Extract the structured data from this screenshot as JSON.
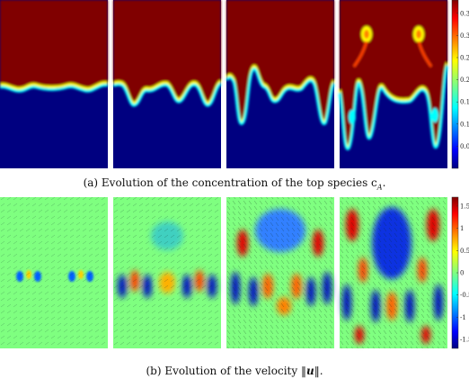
{
  "captions": {
    "a": "(a) Evolution of the concentration of the top species c",
    "a_sub": "A",
    "a_end": ".",
    "b_pre": "(b) Evolution of the velocity ‖",
    "b_sym": "u",
    "b_post": "‖."
  },
  "colorbar_top": {
    "ticks": [
      "0.05",
      "0.1",
      "0.15",
      "0.2",
      "0.25",
      "0.3",
      "0.35"
    ],
    "range": [
      0,
      0.38
    ]
  },
  "colorbar_bottom": {
    "ticks": [
      "-1.5",
      "-1",
      "-0.5",
      "0",
      "0.5",
      "1",
      "1.5"
    ],
    "range": [
      -1.7,
      1.7
    ]
  },
  "colors": {
    "dark_red": "#800000",
    "dark_blue": "#000080",
    "green": "#7fff80"
  }
}
